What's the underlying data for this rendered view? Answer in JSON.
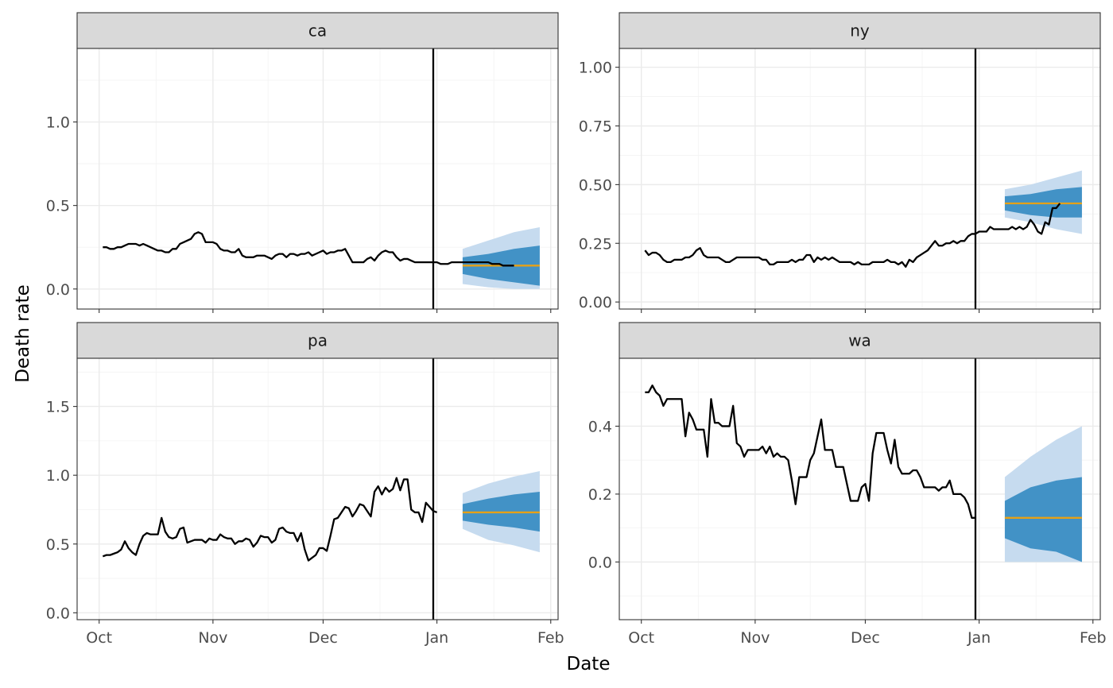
{
  "chart_data": {
    "type": "line",
    "facets": [
      "ca",
      "ny",
      "pa",
      "wa"
    ],
    "xlabel": "Date",
    "ylabel": "Death rate",
    "x_tick_labels": [
      "Oct",
      "Nov",
      "Dec",
      "Jan",
      "Feb"
    ],
    "x_ticks": [
      "2021-10-01",
      "2021-11-01",
      "2021-12-01",
      "2022-01-01",
      "2022-02-01"
    ],
    "xlim": [
      "2021-09-25",
      "2022-02-03"
    ],
    "forecast_date": "2021-12-31",
    "grid": true,
    "panels": [
      {
        "name": "ca",
        "ylim": [
          -0.12,
          1.44
        ],
        "yticks": [
          0.0,
          0.5,
          1.0
        ],
        "ytick_labels": [
          "0.0",
          "0.5",
          "1.0"
        ],
        "observed": {
          "start": "2021-10-02",
          "values": [
            0.25,
            0.25,
            0.24,
            0.24,
            0.25,
            0.25,
            0.26,
            0.27,
            0.27,
            0.27,
            0.26,
            0.27,
            0.26,
            0.25,
            0.24,
            0.23,
            0.23,
            0.22,
            0.22,
            0.24,
            0.24,
            0.27,
            0.28,
            0.29,
            0.3,
            0.33,
            0.34,
            0.33,
            0.28,
            0.28,
            0.28,
            0.27,
            0.24,
            0.23,
            0.23,
            0.22,
            0.22,
            0.24,
            0.2,
            0.19,
            0.19,
            0.19,
            0.2,
            0.2,
            0.2,
            0.19,
            0.18,
            0.2,
            0.21,
            0.21,
            0.19,
            0.21,
            0.21,
            0.2,
            0.21,
            0.21,
            0.22,
            0.2,
            0.21,
            0.22,
            0.23,
            0.21,
            0.22,
            0.22,
            0.23,
            0.23,
            0.24,
            0.2,
            0.16,
            0.16,
            0.16,
            0.16,
            0.18,
            0.19,
            0.17,
            0.2,
            0.22,
            0.23,
            0.22,
            0.22,
            0.19,
            0.17,
            0.18,
            0.18,
            0.17,
            0.16,
            0.16,
            0.16,
            0.16,
            0.16,
            0.16,
            0.16,
            0.15,
            0.15,
            0.15,
            0.16,
            0.16,
            0.16,
            0.16,
            0.16,
            0.16,
            0.16,
            0.16,
            0.16,
            0.16,
            0.16,
            0.15,
            0.15,
            0.15,
            0.14,
            0.14,
            0.14,
            0.14
          ]
        },
        "forecast": {
          "dates": [
            "2022-01-08",
            "2022-01-15",
            "2022-01-22",
            "2022-01-29"
          ],
          "median": [
            0.14,
            0.14,
            0.14,
            0.14
          ],
          "inner_lower": [
            0.09,
            0.06,
            0.04,
            0.02
          ],
          "inner_upper": [
            0.19,
            0.21,
            0.24,
            0.26
          ],
          "outer_lower": [
            0.03,
            0.01,
            0.0,
            0.0
          ],
          "outer_upper": [
            0.24,
            0.29,
            0.34,
            0.37
          ]
        }
      },
      {
        "name": "ny",
        "ylim": [
          -0.03,
          1.08
        ],
        "yticks": [
          0.0,
          0.25,
          0.5,
          0.75,
          1.0
        ],
        "ytick_labels": [
          "0.00",
          "0.25",
          "0.50",
          "0.75",
          "1.00"
        ],
        "observed": {
          "start": "2021-10-02",
          "values": [
            0.22,
            0.2,
            0.21,
            0.21,
            0.2,
            0.18,
            0.17,
            0.17,
            0.18,
            0.18,
            0.18,
            0.19,
            0.19,
            0.2,
            0.22,
            0.23,
            0.2,
            0.19,
            0.19,
            0.19,
            0.19,
            0.18,
            0.17,
            0.17,
            0.18,
            0.19,
            0.19,
            0.19,
            0.19,
            0.19,
            0.19,
            0.19,
            0.18,
            0.18,
            0.16,
            0.16,
            0.17,
            0.17,
            0.17,
            0.17,
            0.18,
            0.17,
            0.18,
            0.18,
            0.2,
            0.2,
            0.17,
            0.19,
            0.18,
            0.19,
            0.18,
            0.19,
            0.18,
            0.17,
            0.17,
            0.17,
            0.17,
            0.16,
            0.17,
            0.16,
            0.16,
            0.16,
            0.17,
            0.17,
            0.17,
            0.17,
            0.18,
            0.17,
            0.17,
            0.16,
            0.17,
            0.15,
            0.18,
            0.17,
            0.19,
            0.2,
            0.21,
            0.22,
            0.24,
            0.26,
            0.24,
            0.24,
            0.25,
            0.25,
            0.26,
            0.25,
            0.26,
            0.26,
            0.28,
            0.29,
            0.29,
            0.3,
            0.3,
            0.3,
            0.32,
            0.31,
            0.31,
            0.31,
            0.31,
            0.31,
            0.32,
            0.31,
            0.32,
            0.31,
            0.32,
            0.35,
            0.33,
            0.3,
            0.29,
            0.34,
            0.33,
            0.4,
            0.4,
            0.42
          ]
        },
        "forecast": {
          "dates": [
            "2022-01-08",
            "2022-01-15",
            "2022-01-22",
            "2022-01-29"
          ],
          "median": [
            0.42,
            0.42,
            0.42,
            0.42
          ],
          "inner_lower": [
            0.39,
            0.37,
            0.36,
            0.36
          ],
          "inner_upper": [
            0.45,
            0.46,
            0.48,
            0.49
          ],
          "outer_lower": [
            0.36,
            0.34,
            0.31,
            0.29
          ],
          "outer_upper": [
            0.48,
            0.5,
            0.53,
            0.56
          ]
        }
      },
      {
        "name": "pa",
        "ylim": [
          -0.05,
          1.85
        ],
        "yticks": [
          0.0,
          0.5,
          1.0,
          1.5
        ],
        "ytick_labels": [
          "0.0",
          "0.5",
          "1.0",
          "1.5"
        ],
        "observed": {
          "start": "2021-10-02",
          "values": [
            0.41,
            0.42,
            0.42,
            0.43,
            0.44,
            0.46,
            0.52,
            0.47,
            0.44,
            0.42,
            0.5,
            0.56,
            0.58,
            0.57,
            0.57,
            0.57,
            0.69,
            0.59,
            0.55,
            0.54,
            0.55,
            0.61,
            0.62,
            0.51,
            0.52,
            0.53,
            0.53,
            0.53,
            0.51,
            0.54,
            0.53,
            0.53,
            0.57,
            0.55,
            0.54,
            0.54,
            0.5,
            0.52,
            0.52,
            0.54,
            0.53,
            0.48,
            0.51,
            0.56,
            0.55,
            0.55,
            0.51,
            0.53,
            0.61,
            0.62,
            0.59,
            0.58,
            0.58,
            0.52,
            0.58,
            0.46,
            0.38,
            0.4,
            0.42,
            0.47,
            0.47,
            0.45,
            0.56,
            0.68,
            0.69,
            0.73,
            0.77,
            0.76,
            0.7,
            0.74,
            0.79,
            0.78,
            0.74,
            0.7,
            0.88,
            0.92,
            0.86,
            0.91,
            0.88,
            0.9,
            0.98,
            0.89,
            0.97,
            0.97,
            0.75,
            0.73,
            0.73,
            0.66,
            0.8,
            0.77,
            0.74,
            0.73
          ]
        },
        "forecast": {
          "dates": [
            "2022-01-08",
            "2022-01-15",
            "2022-01-22",
            "2022-01-29"
          ],
          "median": [
            0.73,
            0.73,
            0.73,
            0.73
          ],
          "inner_lower": [
            0.67,
            0.64,
            0.62,
            0.59
          ],
          "inner_upper": [
            0.79,
            0.83,
            0.86,
            0.88
          ],
          "outer_lower": [
            0.61,
            0.53,
            0.49,
            0.44
          ],
          "outer_upper": [
            0.87,
            0.94,
            0.99,
            1.03
          ]
        }
      },
      {
        "name": "wa",
        "ylim": [
          -0.17,
          0.6
        ],
        "yticks": [
          0.0,
          0.2,
          0.4
        ],
        "ytick_labels": [
          "0.0",
          "0.2",
          "0.4"
        ],
        "observed": {
          "start": "2021-10-02",
          "values": [
            0.5,
            0.5,
            0.52,
            0.5,
            0.49,
            0.46,
            0.48,
            0.48,
            0.48,
            0.48,
            0.48,
            0.37,
            0.44,
            0.42,
            0.39,
            0.39,
            0.39,
            0.31,
            0.48,
            0.41,
            0.41,
            0.4,
            0.4,
            0.4,
            0.46,
            0.35,
            0.34,
            0.31,
            0.33,
            0.33,
            0.33,
            0.33,
            0.34,
            0.32,
            0.34,
            0.31,
            0.32,
            0.31,
            0.31,
            0.3,
            0.24,
            0.17,
            0.25,
            0.25,
            0.25,
            0.3,
            0.32,
            0.37,
            0.42,
            0.33,
            0.33,
            0.33,
            0.28,
            0.28,
            0.28,
            0.23,
            0.18,
            0.18,
            0.18,
            0.22,
            0.23,
            0.18,
            0.32,
            0.38,
            0.38,
            0.38,
            0.33,
            0.29,
            0.36,
            0.28,
            0.26,
            0.26,
            0.26,
            0.27,
            0.27,
            0.25,
            0.22,
            0.22,
            0.22,
            0.22,
            0.21,
            0.22,
            0.22,
            0.24,
            0.2,
            0.2,
            0.2,
            0.19,
            0.17,
            0.13,
            0.13
          ]
        },
        "forecast": {
          "dates": [
            "2022-01-08",
            "2022-01-15",
            "2022-01-22",
            "2022-01-29"
          ],
          "median": [
            0.13,
            0.13,
            0.13,
            0.13
          ],
          "inner_lower": [
            0.07,
            0.04,
            0.03,
            0.0
          ],
          "inner_upper": [
            0.18,
            0.22,
            0.24,
            0.25
          ],
          "outer_lower": [
            0.0,
            0.0,
            0.0,
            0.0
          ],
          "outer_upper": [
            0.25,
            0.31,
            0.36,
            0.4
          ]
        }
      }
    ]
  },
  "colors": {
    "observed_line": "#000000",
    "median_line": "#e6a117",
    "band_inner": "#4292c6",
    "band_outer": "#c6dbef",
    "strip_fill": "#d9d9d9"
  }
}
